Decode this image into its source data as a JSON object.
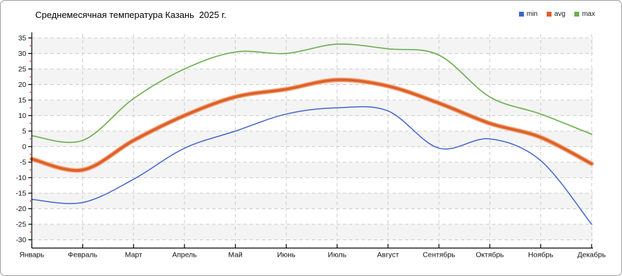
{
  "chart_data": {
    "type": "line",
    "title": "Среднемесячная температура Казань  2025 г.",
    "xlabel": "",
    "ylabel": "",
    "categories": [
      "Январь",
      "Февраль",
      "Март",
      "Апрель",
      "Май",
      "Июнь",
      "Июль",
      "Август",
      "Сентябрь",
      "Октябрь",
      "Ноябрь",
      "Декабрь"
    ],
    "series": [
      {
        "name": "min",
        "color": "#3f63cc",
        "values": [
          -17,
          -18,
          -10.5,
          -0.5,
          5,
          10.5,
          12.5,
          11.5,
          -0.5,
          2.5,
          -4.5,
          -25
        ]
      },
      {
        "name": "avg",
        "color": "#dd5f28",
        "halo_color": "#f2a377",
        "values": [
          -4,
          -7.5,
          2,
          10,
          16,
          18.5,
          21.5,
          19.5,
          14,
          7.5,
          3,
          -5.5
        ]
      },
      {
        "name": "max",
        "color": "#6db04f",
        "values": [
          3.5,
          2,
          15.5,
          25,
          30.5,
          30,
          33,
          31.5,
          29.5,
          16,
          10.5,
          4
        ]
      }
    ],
    "ylim": [
      -30,
      35
    ],
    "ytick_step": 5,
    "yticks": [
      35,
      30,
      25,
      20,
      15,
      10,
      5,
      0,
      -5,
      -10,
      -15,
      -20,
      -25,
      -30
    ],
    "grid": "dashed",
    "legend_position": "top-right"
  },
  "colors": {
    "grid": "#cccccc",
    "band": "#f4f4f4",
    "axis": "#000000",
    "minor_tick": "#c3402f",
    "border": "#9e9e9e",
    "tick_label": "#111111"
  }
}
